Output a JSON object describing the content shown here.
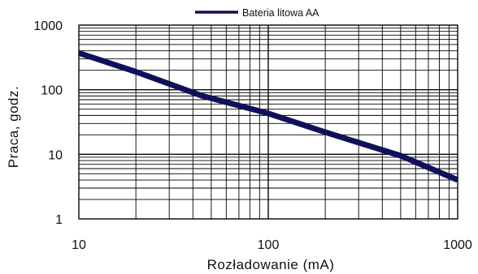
{
  "chart_data": {
    "type": "line",
    "title": "",
    "xlabel": "Rozładowanie (mA)",
    "ylabel": "Praca, godz.",
    "x_scale": "log",
    "y_scale": "log",
    "xlim": [
      10,
      1000
    ],
    "ylim": [
      1,
      1000
    ],
    "x_ticks": [
      {
        "value": 10,
        "label": "10"
      },
      {
        "value": 100,
        "label": "100"
      },
      {
        "value": 1000,
        "label": "1000"
      }
    ],
    "y_ticks": [
      {
        "value": 1,
        "label": "1"
      },
      {
        "value": 10,
        "label": "10"
      },
      {
        "value": 100,
        "label": "100"
      },
      {
        "value": 1000,
        "label": "1000"
      }
    ],
    "grid": true,
    "legend_position": "top-right",
    "series": [
      {
        "name": "Bateria litowa AA",
        "color": "#10105a",
        "x": [
          10,
          20,
          45,
          100,
          200,
          500,
          1000
        ],
        "y": [
          370,
          190,
          80,
          43,
          22,
          9.5,
          4
        ]
      }
    ]
  }
}
